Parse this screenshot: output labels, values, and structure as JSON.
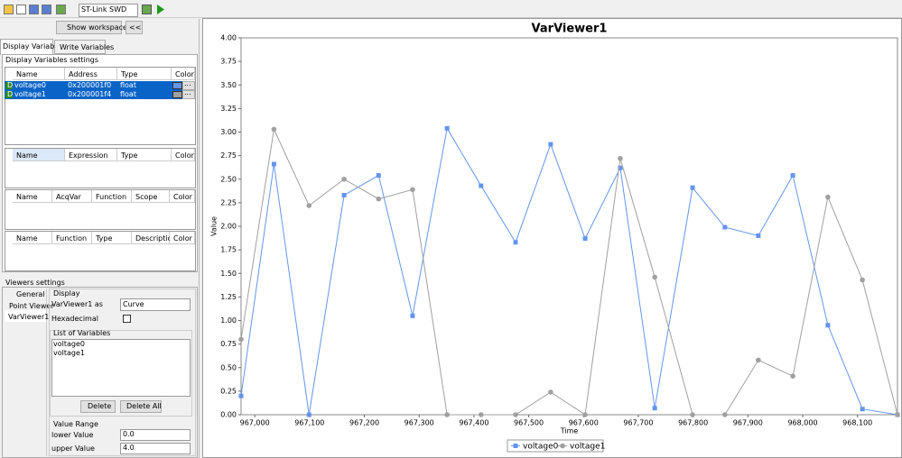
{
  "toolbar": {
    "connection": "ST-Link SWD"
  },
  "workspace": {
    "show_button": "Show workspace",
    "collapse_button": "<<"
  },
  "tabs": [
    "Display Variables",
    "Write Variables"
  ],
  "display_settings": {
    "title": "Display Variables settings",
    "variables_table": {
      "headers": [
        "Name",
        "Address",
        "Type",
        "Color"
      ],
      "rows": [
        {
          "icon": "D",
          "name": "voltage0",
          "address": "0x200001f0",
          "type": "float",
          "color_button": "..."
        },
        {
          "icon": "D",
          "name": "voltage1",
          "address": "0x200001f4",
          "type": "float",
          "color_button": "..."
        }
      ]
    },
    "expressions_table": {
      "headers": [
        "Name",
        "Expression",
        "Type",
        "Color"
      ]
    },
    "acquisition_table": {
      "headers": [
        "Name",
        "AcqVar",
        "Function",
        "Scope",
        "Color"
      ]
    },
    "functions_table": {
      "headers": [
        "Name",
        "Function",
        "Type",
        "Description",
        "Color"
      ]
    }
  },
  "viewers_settings": {
    "title": "Viewers settings",
    "viewers": [
      "General",
      "Point Viewer",
      "VarViewer1"
    ],
    "display": {
      "title": "Display",
      "as_label": "VarViewer1 as",
      "as_value": "Curve",
      "hex_label": "Hexadecimal"
    },
    "variables": {
      "title": "List of Variables",
      "items": [
        "voltage0",
        "voltage1"
      ],
      "delete": "Delete",
      "delete_all": "Delete All"
    },
    "range": {
      "title": "Value Range",
      "lower_label": "lower Value",
      "lower": "0.0",
      "upper_label": "upper Value",
      "upper": "4.0"
    }
  },
  "chart_data": {
    "type": "line",
    "title": "VarViewer1",
    "x_label": "Time",
    "y_label": "Value",
    "x": [
      966975,
      967035,
      967099,
      967163,
      967226,
      967288,
      967351,
      967413,
      967476,
      967540,
      967603,
      967667,
      967730,
      967799,
      967858,
      967919,
      967982,
      968046,
      968109,
      968173
    ],
    "series": [
      {
        "name": "voltage0",
        "color": "#6495ed",
        "marker": "square",
        "values": [
          0.2,
          2.66,
          0.0,
          2.33,
          2.54,
          1.05,
          3.04,
          2.43,
          1.83,
          2.87,
          1.87,
          2.62,
          0.07,
          2.41,
          1.99,
          1.9,
          2.54,
          0.95,
          0.06,
          0.0
        ]
      },
      {
        "name": "voltage1",
        "color": "#a0a0a0",
        "marker": "circle",
        "values": [
          0.8,
          3.03,
          2.22,
          2.5,
          2.29,
          2.39,
          0.0,
          0.0,
          0.0,
          0.24,
          0.0,
          2.72,
          1.46,
          0.0,
          0.0,
          0.58,
          0.41,
          2.31,
          1.43,
          0.0
        ]
      }
    ],
    "xlim": [
      966975,
      968173
    ],
    "xticks": [
      {
        "value": 967000,
        "label": "967,000"
      },
      {
        "value": 967100,
        "label": "967,100"
      },
      {
        "value": 967200,
        "label": "967,200"
      },
      {
        "value": 967300,
        "label": "967,300"
      },
      {
        "value": 967400,
        "label": "967,400"
      },
      {
        "value": 967500,
        "label": "967,500"
      },
      {
        "value": 967600,
        "label": "967,600"
      },
      {
        "value": 967700,
        "label": "967,700"
      },
      {
        "value": 967800,
        "label": "967,800"
      },
      {
        "value": 967900,
        "label": "967,900"
      },
      {
        "value": 968000,
        "label": "968,000"
      },
      {
        "value": 968100,
        "label": "968,100"
      }
    ],
    "ylim": [
      0,
      4
    ],
    "yticks": [
      {
        "value": 0,
        "label": "0.00"
      },
      {
        "value": 0.25,
        "label": "0.25"
      },
      {
        "value": 0.5,
        "label": "0.50"
      },
      {
        "value": 0.75,
        "label": "0.75"
      },
      {
        "value": 1,
        "label": "1.00"
      },
      {
        "value": 1.25,
        "label": "1.25"
      },
      {
        "value": 1.5,
        "label": "1.50"
      },
      {
        "value": 1.75,
        "label": "1.75"
      },
      {
        "value": 2,
        "label": "2.00"
      },
      {
        "value": 2.25,
        "label": "2.25"
      },
      {
        "value": 2.5,
        "label": "2.50"
      },
      {
        "value": 2.75,
        "label": "2.75"
      },
      {
        "value": 3,
        "label": "3.00"
      },
      {
        "value": 3.25,
        "label": "3.25"
      },
      {
        "value": 3.5,
        "label": "3.50"
      },
      {
        "value": 3.75,
        "label": "3.75"
      },
      {
        "value": 4,
        "label": "4.00"
      }
    ],
    "grid": false,
    "legend": "bottom"
  }
}
